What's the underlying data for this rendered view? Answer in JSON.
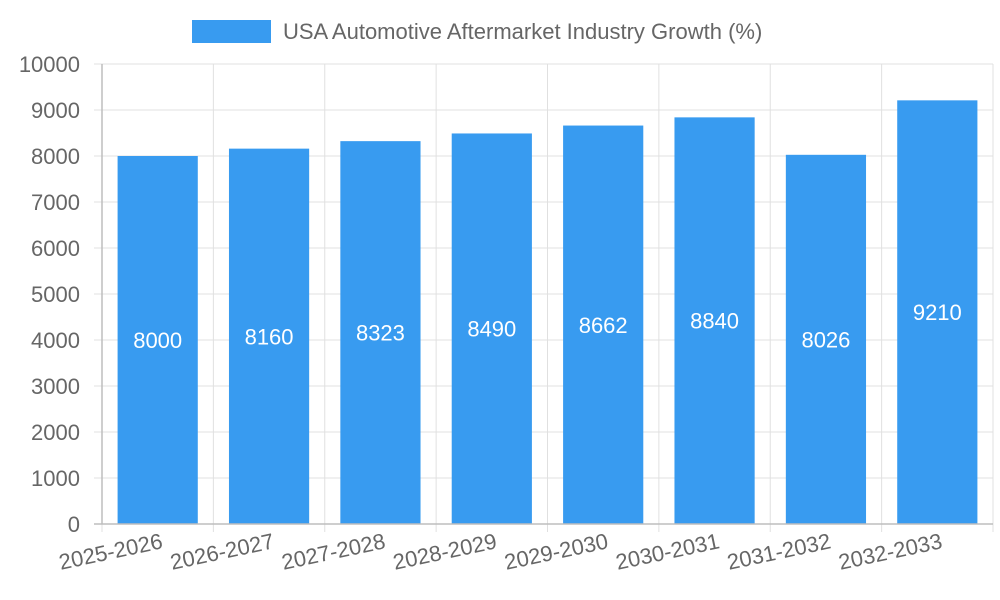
{
  "chart_data": {
    "type": "bar",
    "legend": {
      "label": "USA Automotive Aftermarket Industry Growth (%)",
      "position": "top"
    },
    "categories": [
      "2025-2026",
      "2026-2027",
      "2027-2028",
      "2028-2029",
      "2029-2030",
      "2030-2031",
      "2031-2032",
      "2032-2033"
    ],
    "series": [
      {
        "name": "USA Automotive Aftermarket Industry Growth (%)",
        "values": [
          8000,
          8160,
          8323,
          8490,
          8662,
          8840,
          8026,
          9210
        ]
      }
    ],
    "y_ticks": [
      "0",
      "1000",
      "2000",
      "3000",
      "4000",
      "5000",
      "6000",
      "7000",
      "8000",
      "9000",
      "10000"
    ],
    "ylim": [
      0,
      10000
    ],
    "grid": true,
    "data_labels": true,
    "colors": {
      "bar": "#389bf0",
      "grid": "#e0e0e0",
      "axis": "#bdbdbd",
      "text": "#666666",
      "label": "#ffffff"
    }
  }
}
